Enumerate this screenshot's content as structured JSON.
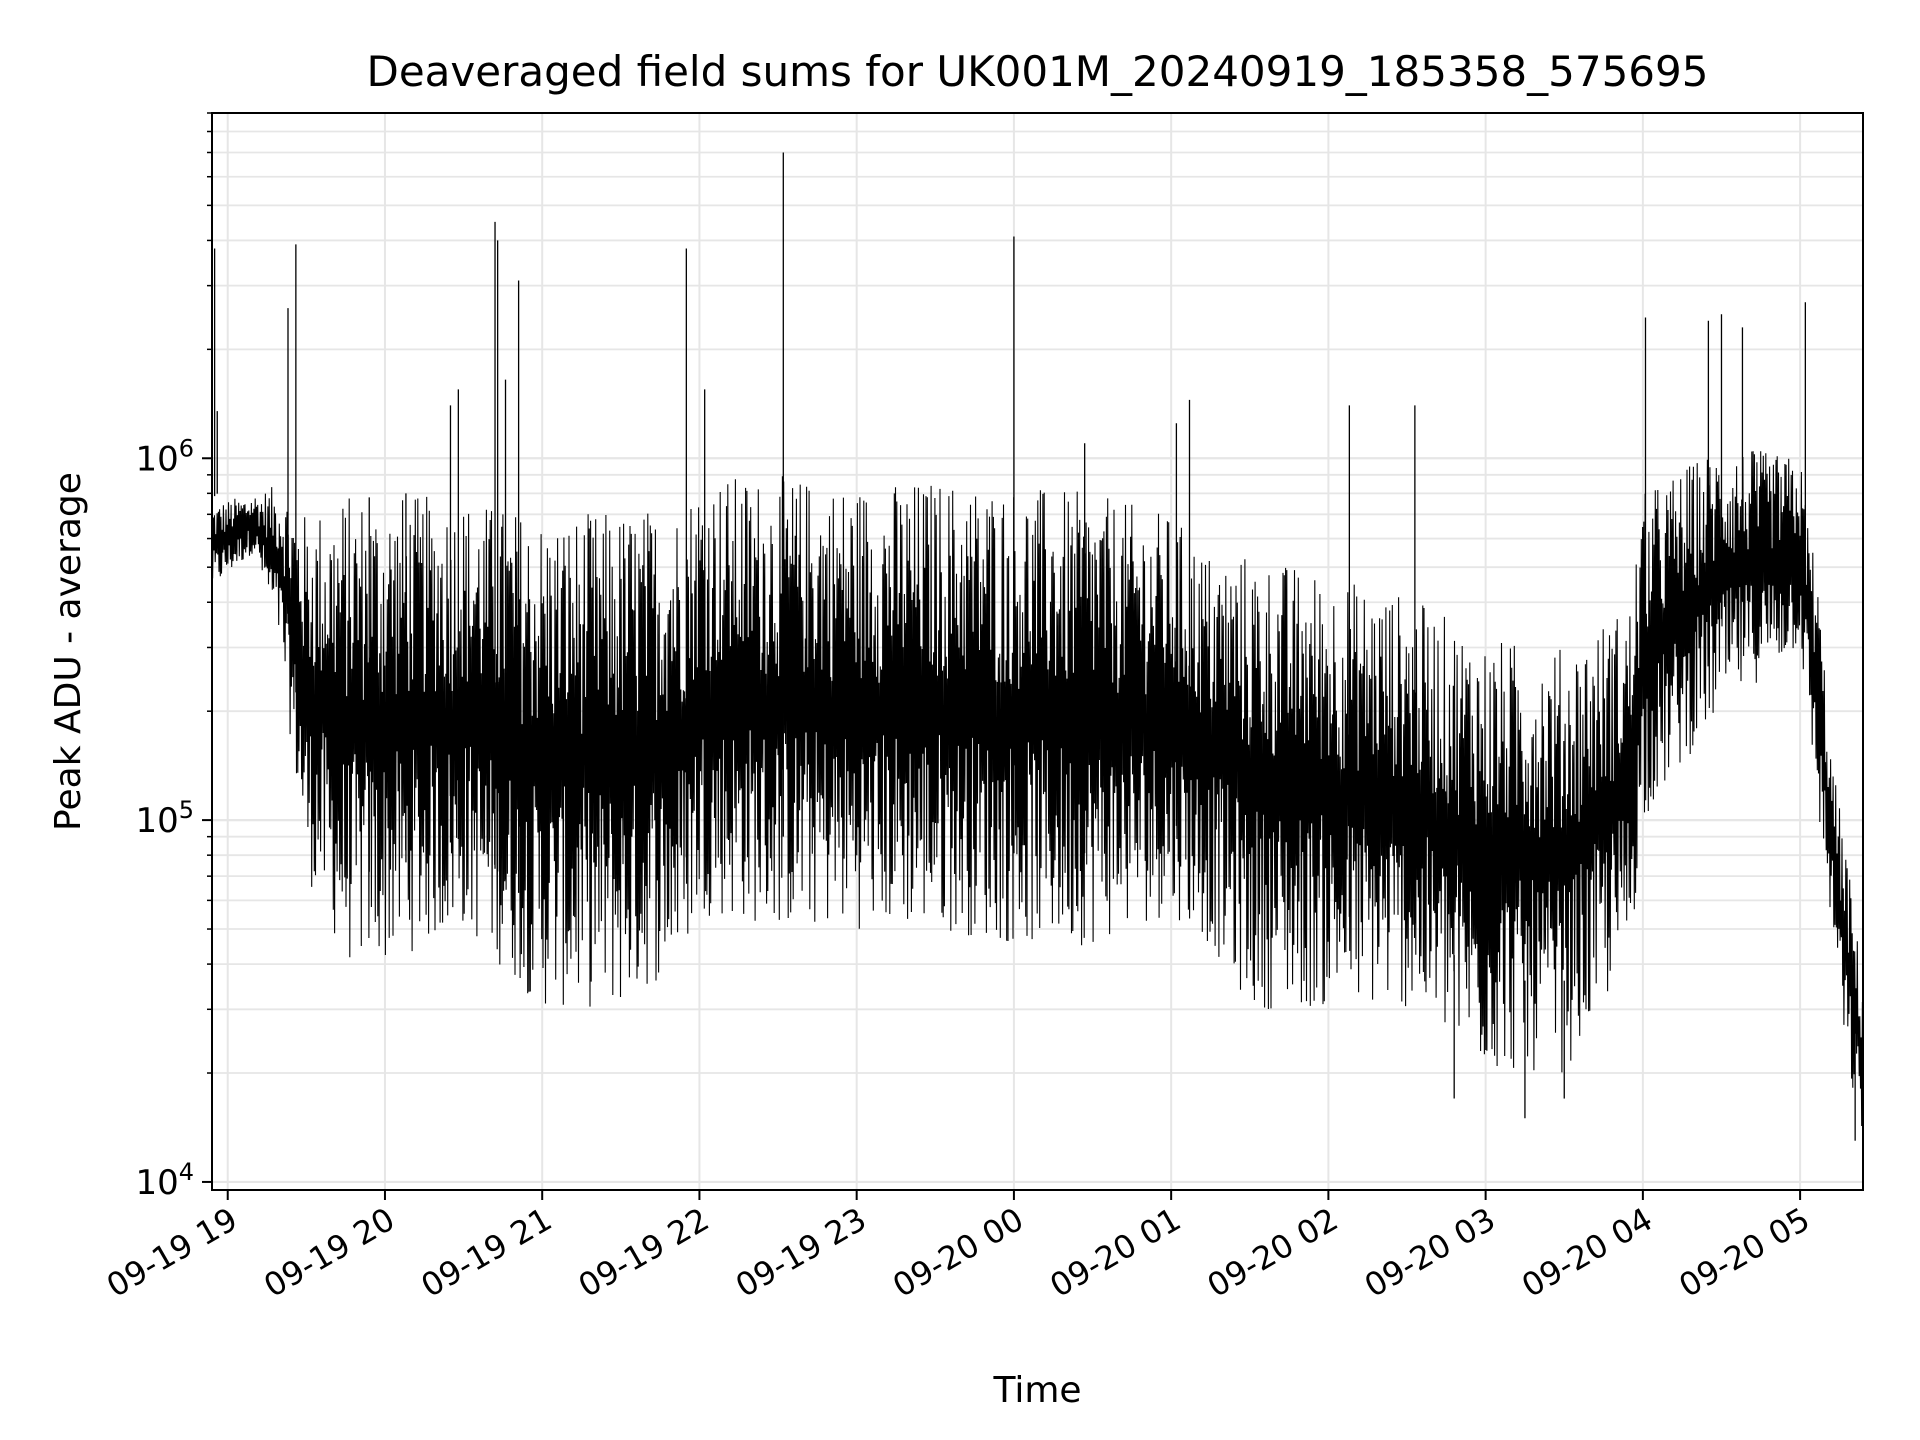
{
  "chart_data": {
    "type": "line",
    "title": "Deaveraged field sums for UK001M_20240919_185358_575695",
    "xlabel": "Time",
    "ylabel": "Peak ADU - average",
    "yscale": "log",
    "ylim": [
      9500,
      9000000
    ],
    "xlim": [
      "2024-09-19T18:54:00",
      "2024-09-20T05:24:00"
    ],
    "grid": true,
    "grid_minor": true,
    "line_color": "#000000",
    "grid_color": "#e6e6e6",
    "x_ticks": [
      {
        "t": "2024-09-19T19:00:00",
        "label": "09-19 19"
      },
      {
        "t": "2024-09-19T20:00:00",
        "label": "09-19 20"
      },
      {
        "t": "2024-09-19T21:00:00",
        "label": "09-19 21"
      },
      {
        "t": "2024-09-19T22:00:00",
        "label": "09-19 22"
      },
      {
        "t": "2024-09-19T23:00:00",
        "label": "09-19 23"
      },
      {
        "t": "2024-09-20T00:00:00",
        "label": "09-20 00"
      },
      {
        "t": "2024-09-20T01:00:00",
        "label": "09-20 01"
      },
      {
        "t": "2024-09-20T02:00:00",
        "label": "09-20 02"
      },
      {
        "t": "2024-09-20T03:00:00",
        "label": "09-20 03"
      },
      {
        "t": "2024-09-20T04:00:00",
        "label": "09-20 04"
      },
      {
        "t": "2024-09-20T05:00:00",
        "label": "09-20 05"
      }
    ],
    "y_ticks": [
      {
        "value": 10000,
        "base": "10",
        "exp": "4"
      },
      {
        "value": 100000,
        "base": "10",
        "exp": "5"
      },
      {
        "value": 1000000,
        "base": "10",
        "exp": "6"
      }
    ],
    "envelope": {
      "description_note": "approximate upper/lower envelope of the noisy series",
      "t": [
        "2024-09-19T18:54:00",
        "2024-09-19T19:10:00",
        "2024-09-19T19:20:00",
        "2024-09-19T19:30:00",
        "2024-09-19T19:45:00",
        "2024-09-19T20:00:00",
        "2024-09-19T20:30:00",
        "2024-09-19T21:00:00",
        "2024-09-19T21:30:00",
        "2024-09-19T21:53:00",
        "2024-09-19T22:00:00",
        "2024-09-19T22:30:00",
        "2024-09-19T23:00:00",
        "2024-09-19T23:30:00",
        "2024-09-20T00:00:00",
        "2024-09-20T00:30:00",
        "2024-09-20T01:00:00",
        "2024-09-20T01:15:00",
        "2024-09-20T01:30:00",
        "2024-09-20T02:00:00",
        "2024-09-20T02:30:00",
        "2024-09-20T03:00:00",
        "2024-09-20T03:30:00",
        "2024-09-20T03:55:00",
        "2024-09-20T04:00:00",
        "2024-09-20T04:30:00",
        "2024-09-20T05:00:00",
        "2024-09-20T05:07:00",
        "2024-09-20T05:12:00",
        "2024-09-20T05:18:00",
        "2024-09-20T05:24:00"
      ],
      "high": [
        750000,
        800000,
        850000,
        700000,
        800000,
        800000,
        780000,
        700000,
        720000,
        750000,
        900000,
        900000,
        850000,
        880000,
        850000,
        800000,
        700000,
        550000,
        550000,
        480000,
        420000,
        320000,
        300000,
        400000,
        800000,
        1100000,
        1000000,
        450000,
        150000,
        80000,
        35000
      ],
      "low": [
        430000,
        550000,
        300000,
        70000,
        40000,
        40000,
        50000,
        30000,
        30000,
        40000,
        55000,
        50000,
        50000,
        50000,
        45000,
        45000,
        55000,
        45000,
        30000,
        30000,
        30000,
        20000,
        20000,
        40000,
        100000,
        200000,
        300000,
        100000,
        50000,
        20000,
        13000
      ]
    },
    "spikes": [
      {
        "t": "2024-09-19T18:55:00",
        "value": 3800000
      },
      {
        "t": "2024-09-19T18:56:00",
        "value": 1350000
      },
      {
        "t": "2024-09-19T19:23:00",
        "value": 2600000
      },
      {
        "t": "2024-09-19T19:26:00",
        "value": 3900000
      },
      {
        "t": "2024-09-19T19:54:00",
        "value": 780000
      },
      {
        "t": "2024-09-19T20:08:00",
        "value": 800000
      },
      {
        "t": "2024-09-19T20:25:00",
        "value": 1400000
      },
      {
        "t": "2024-09-19T20:28:00",
        "value": 1550000
      },
      {
        "t": "2024-09-19T20:42:00",
        "value": 4500000
      },
      {
        "t": "2024-09-19T20:43:00",
        "value": 4000000
      },
      {
        "t": "2024-09-19T20:46:00",
        "value": 1650000
      },
      {
        "t": "2024-09-19T20:51:00",
        "value": 3100000
      },
      {
        "t": "2024-09-19T21:55:00",
        "value": 3800000
      },
      {
        "t": "2024-09-19T22:02:00",
        "value": 1550000
      },
      {
        "t": "2024-09-19T22:32:00",
        "value": 7000000
      },
      {
        "t": "2024-09-20T00:00:00",
        "value": 4100000
      },
      {
        "t": "2024-09-20T00:27:00",
        "value": 1100000
      },
      {
        "t": "2024-09-20T01:07:00",
        "value": 1450000
      },
      {
        "t": "2024-09-20T01:02:00",
        "value": 1250000
      },
      {
        "t": "2024-09-20T02:08:00",
        "value": 1400000
      },
      {
        "t": "2024-09-20T02:33:00",
        "value": 1400000
      },
      {
        "t": "2024-09-20T04:01:00",
        "value": 2450000
      },
      {
        "t": "2024-09-20T04:25:00",
        "value": 2400000
      },
      {
        "t": "2024-09-20T04:30:00",
        "value": 2500000
      },
      {
        "t": "2024-09-20T04:38:00",
        "value": 2300000
      },
      {
        "t": "2024-09-20T05:02:00",
        "value": 2700000
      },
      {
        "t": "2024-09-20T02:48:00",
        "value": 17000
      },
      {
        "t": "2024-09-20T03:15:00",
        "value": 15000
      },
      {
        "t": "2024-09-20T03:30:00",
        "value": 17000
      },
      {
        "t": "2024-09-20T05:21:00",
        "value": 13000
      }
    ]
  }
}
